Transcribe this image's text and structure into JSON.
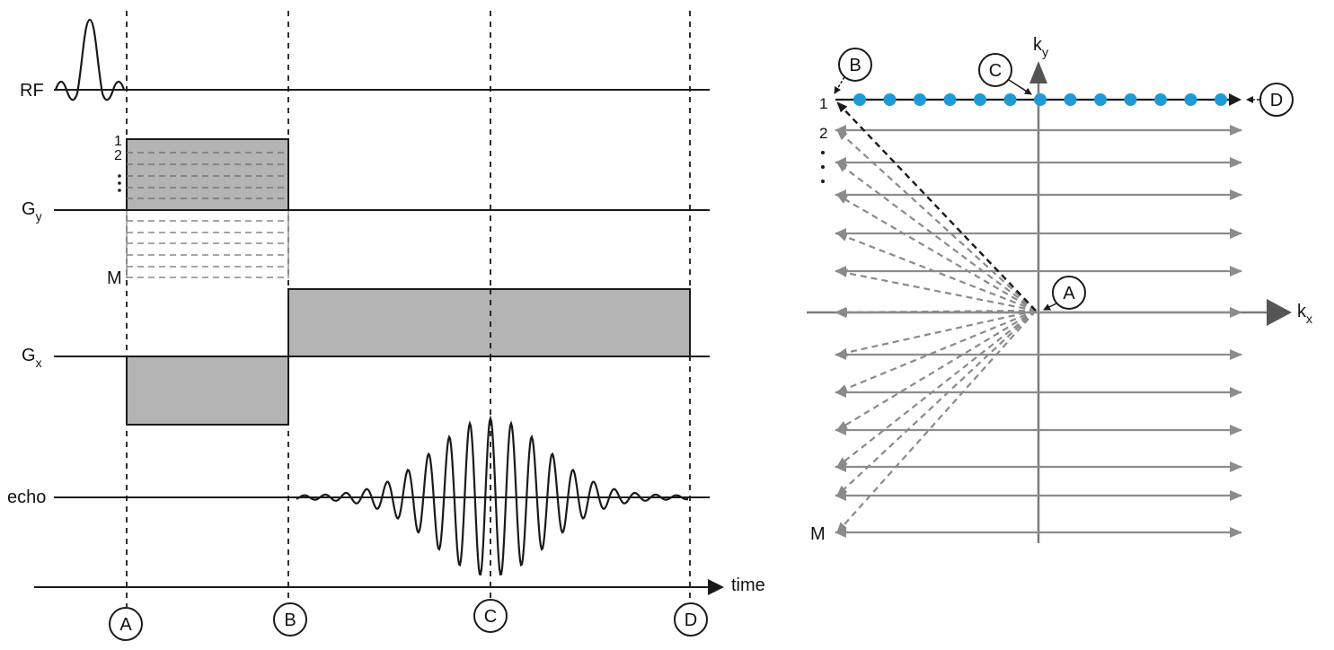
{
  "timing_diagram": {
    "channel_labels": {
      "rf": "RF",
      "gy": "G",
      "gy_sub": "y",
      "gx": "G",
      "gx_sub": "x",
      "echo": "echo"
    },
    "phase_step_labels": {
      "first": "1",
      "second": "2",
      "last": "M"
    },
    "time_axis_label": "time",
    "time_markers": [
      "A",
      "B",
      "C",
      "D"
    ]
  },
  "kspace_diagram": {
    "axis_labels": {
      "kx": "k",
      "kx_sub": "x",
      "ky": "k",
      "ky_sub": "y"
    },
    "line_labels": {
      "first": "1",
      "second": "2",
      "last": "M"
    },
    "point_markers": [
      "A",
      "B",
      "C",
      "D"
    ],
    "sampled_points_on_first_line": 13
  },
  "colors": {
    "line": "#1a1a1a",
    "gray_fill": "#b4b4b4",
    "gray_arrow": "#8c8c8c",
    "dashed_gray": "#8a8a8a",
    "sample_dot": "#1e9ad6"
  }
}
